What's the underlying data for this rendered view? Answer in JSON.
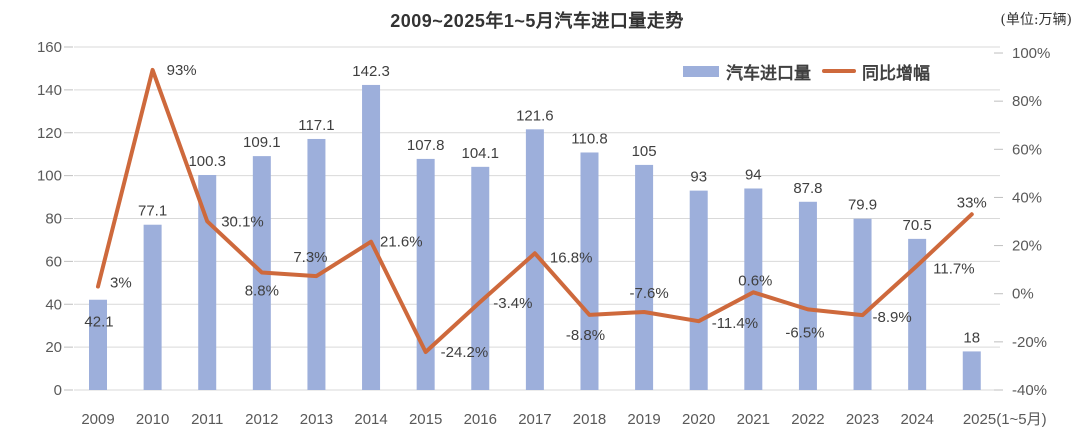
{
  "chart_data": {
    "type": "bar",
    "subtype": "combo-bar-line-dual-axis",
    "title": "2009~2025年1~5月汽车进口量走势",
    "unit": "(单位:万辆)",
    "categories": [
      "2009",
      "2010",
      "2011",
      "2012",
      "2013",
      "2014",
      "2015",
      "2016",
      "2017",
      "2018",
      "2019",
      "2020",
      "2021",
      "2022",
      "2023",
      "2024",
      "2025(1~5月)"
    ],
    "series": [
      {
        "name": "汽车进口量",
        "kind": "bar",
        "axis": "left",
        "color": "#9DAFDB",
        "values": [
          42.1,
          77.1,
          100.3,
          109.1,
          117.1,
          142.3,
          107.8,
          104.1,
          121.6,
          110.8,
          105,
          93,
          94,
          87.8,
          79.9,
          70.5,
          18
        ],
        "labels": [
          "42.1",
          "77.1",
          "100.3",
          "109.1",
          "117.1",
          "142.3",
          "107.8",
          "104.1",
          "121.6",
          "110.8",
          "105",
          "93",
          "94",
          "87.8",
          "79.9",
          "70.5",
          "18"
        ]
      },
      {
        "name": "同比增幅",
        "kind": "line",
        "axis": "right",
        "color": "#CE693C",
        "values": [
          3,
          93,
          30.1,
          8.8,
          7.3,
          21.6,
          -24.2,
          -3.4,
          16.8,
          -8.8,
          -7.6,
          -11.4,
          0.6,
          -6.5,
          -8.9,
          11.7,
          33
        ],
        "labels": [
          "3%",
          "93%",
          "30.1%",
          "8.8%",
          "7.3%",
          "21.6%",
          "-24.2%",
          "-3.4%",
          "16.8%",
          "-8.8%",
          "-7.6%",
          "-11.4%",
          "0.6%",
          "-6.5%",
          "-8.9%",
          "11.7%",
          "33%"
        ]
      }
    ],
    "left_axis": {
      "min": 0,
      "max": 160,
      "step": 20,
      "ticks": [
        "0",
        "20",
        "40",
        "60",
        "80",
        "100",
        "120",
        "140",
        "160"
      ]
    },
    "right_axis": {
      "min": -40,
      "max": 100,
      "step": 20,
      "ticks": [
        "-40%",
        "-20%",
        "0%",
        "20%",
        "40%",
        "60%",
        "80%",
        "100%"
      ]
    },
    "grid": true,
    "legend_position": "top-right",
    "colors": {
      "bar": "#9DAFDB",
      "line": "#CE693C",
      "gridline": "#D9D9D9",
      "axis_text": "#595959",
      "data_label": "#3F3F3F",
      "title_text": "#333333"
    }
  }
}
